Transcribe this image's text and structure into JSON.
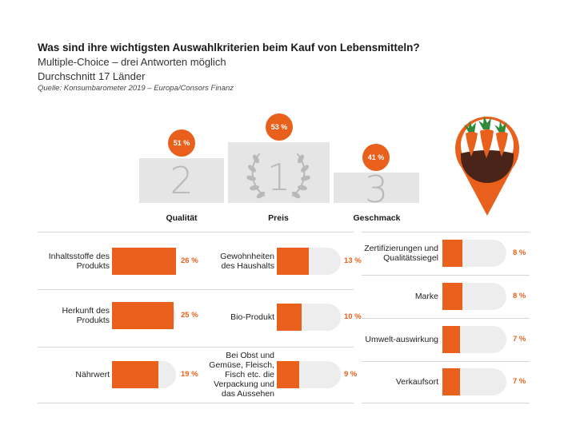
{
  "header": {
    "title": "Was sind ihre wichtigsten Auswahlkriterien beim Kauf von Lebensmitteln?",
    "subtitle1": "Multiple-Choice – drei Antworten möglich",
    "subtitle2": "Durchschnitt 17 Länder",
    "source": "Quelle: Konsumbarometer 2019 – Europa/Consors Finanz"
  },
  "colors": {
    "accent": "#e8601c",
    "track": "#ededed",
    "podium": "#e5e5e5",
    "podium_number": "#b9b9b9"
  },
  "icons": {
    "wreath": "laurel-wreath-icon",
    "pin": "carrot-location-pin-icon"
  },
  "podium": [
    {
      "rank": "2",
      "label": "Qualität",
      "value_text": "51 %",
      "value": 51
    },
    {
      "rank": "1",
      "label": "Preis",
      "value_text": "53 %",
      "value": 53
    },
    {
      "rank": "3",
      "label": "Geschmack",
      "value_text": "41 %",
      "value": 41
    }
  ],
  "chart_data": {
    "type": "bar",
    "unit": "%",
    "title": "Was sind ihre wichtigsten Auswahlkriterien beim Kauf von Lebensmitteln?",
    "top3": [
      {
        "label": "Preis",
        "value": 53
      },
      {
        "label": "Qualität",
        "value": 51
      },
      {
        "label": "Geschmack",
        "value": 41
      }
    ],
    "columns": [
      [
        {
          "label": "Inhaltsstoffe des Produkts",
          "value": 26,
          "value_text": "26 %"
        },
        {
          "label": "Herkunft des Produkts",
          "value": 25,
          "value_text": "25 %"
        },
        {
          "label": "Nährwert",
          "value": 19,
          "value_text": "19 %"
        }
      ],
      [
        {
          "label": "Gewohnheiten des Haushalts",
          "value": 13,
          "value_text": "13 %"
        },
        {
          "label": "Bio-Produkt",
          "value": 10,
          "value_text": "10 %"
        },
        {
          "label": "Bei Obst und Gemüse, Fleisch, Fisch etc. die Verpackung und das Aussehen",
          "value": 9,
          "value_text": "9 %"
        }
      ],
      [
        {
          "label": "Zertifizierungen und Qualitätssiegel",
          "value": 8,
          "value_text": "8 %"
        },
        {
          "label": "Marke",
          "value": 8,
          "value_text": "8 %"
        },
        {
          "label": "Umwelt-auswirkung",
          "value": 7,
          "value_text": "7 %"
        },
        {
          "label": "Verkaufsort",
          "value": 7,
          "value_text": "7 %"
        }
      ]
    ]
  }
}
